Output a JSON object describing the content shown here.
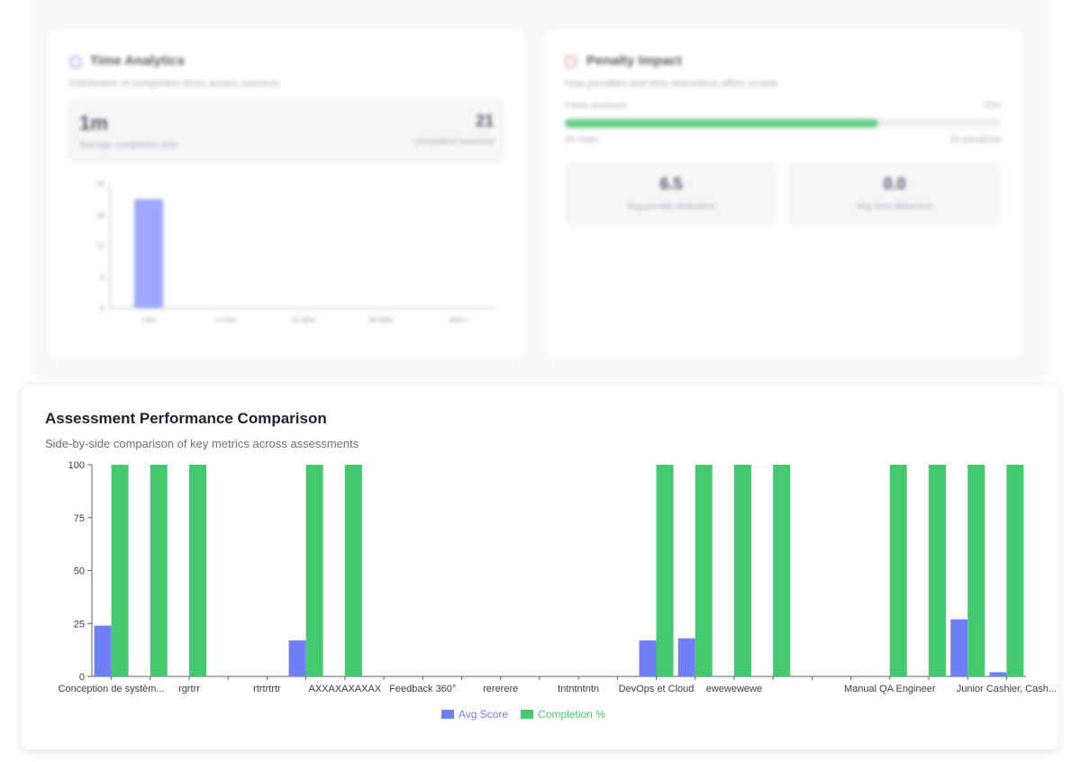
{
  "time_analytics": {
    "title": "Time Analytics",
    "subtitle": "Distribution of completion times across sessions",
    "avg_value": "1m",
    "avg_label": "Average completion time",
    "count_value": "21",
    "count_label": "completed sessions",
    "chart_data": {
      "type": "bar",
      "categories": [
        "<5m",
        "5-15m",
        "15-30m",
        "30-60m",
        "60m+"
      ],
      "values": [
        21,
        0,
        0,
        0,
        0
      ],
      "yticks": [
        "0",
        "6",
        "12",
        "18",
        "24"
      ],
      "ylim": [
        0,
        24
      ],
      "color": "#7b8cf7"
    }
  },
  "penalty_impact": {
    "title": "Penalty Impact",
    "subtitle": "How penalties and time deductions affect scores",
    "clean_label": "Clean sessions",
    "clean_percent_text": "72%",
    "clean_fraction": 0.72,
    "clean_count": "26 clean",
    "penalized_count": "10 penalized",
    "avg_penalty_value": "6.5",
    "avg_penalty_label": "Avg penalty deduction",
    "avg_time_value": "0.0",
    "avg_time_label": "Avg time deduction"
  },
  "performance": {
    "title": "Assessment Performance Comparison",
    "subtitle": "Side-by-side comparison of key metrics across assessments",
    "legend": [
      {
        "label": "Avg Score",
        "color": "#6f7ff5"
      },
      {
        "label": "Completion %",
        "color": "#45c96f"
      }
    ]
  },
  "chart_data": {
    "type": "bar",
    "categories": [
      "Conception de systèm...",
      "",
      "rgrtrr",
      "",
      "rtrtrtrtr",
      "",
      "AXXAXAXAXAX",
      "",
      "Feedback 360°",
      "",
      "rererere",
      "",
      "tntntntntn",
      "",
      "DevOps et Cloud",
      "",
      "ewewewewe",
      "",
      "",
      "",
      "Manual QA Engineer",
      "",
      "",
      "Junior Cashier, Cash..."
    ],
    "series": [
      {
        "name": "Avg Score",
        "values": [
          24,
          0,
          0,
          0,
          0,
          17,
          0,
          0,
          0,
          0,
          0,
          0,
          0,
          0,
          17,
          18,
          0,
          0,
          0,
          0,
          0,
          0,
          27,
          2
        ]
      },
      {
        "name": "Completion %",
        "values": [
          100,
          100,
          100,
          0,
          0,
          100,
          100,
          0,
          0,
          0,
          0,
          0,
          0,
          0,
          100,
          100,
          100,
          100,
          0,
          0,
          100,
          100,
          100,
          100
        ]
      }
    ],
    "series_colors": [
      "#6f7ff5",
      "#45c96f"
    ],
    "yticks": [
      "0",
      "25",
      "50",
      "75",
      "100"
    ],
    "ylim": [
      0,
      100
    ]
  }
}
